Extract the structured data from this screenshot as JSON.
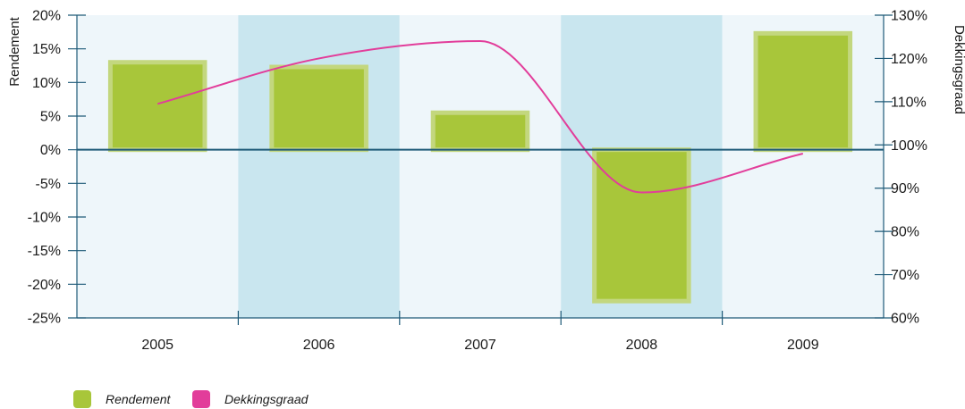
{
  "chart_data": {
    "type": "bar",
    "categories": [
      "2005",
      "2006",
      "2007",
      "2008",
      "2009"
    ],
    "series": [
      {
        "name": "Rendement",
        "type": "bar",
        "axis": "left",
        "values": [
          13,
          12.3,
          5.5,
          -22.5,
          17.3
        ]
      },
      {
        "name": "Dekkingsgraad",
        "type": "line",
        "axis": "right",
        "values": [
          109.5,
          120,
          124,
          89,
          98
        ]
      }
    ],
    "xlabel": "",
    "ylabel": "Rendement",
    "y2label": "Dekkingsgraad",
    "ylim": [
      -25,
      20
    ],
    "y2lim": [
      60,
      130
    ],
    "yticks": [
      "20%",
      "15%",
      "10%",
      "5%",
      "0%",
      "-5%",
      "-10%",
      "-15%",
      "-20%",
      "-25%"
    ],
    "y2ticks": [
      "130%",
      "120%",
      "110%",
      "100%",
      "90%",
      "80%",
      "70%",
      "60%"
    ],
    "legend": {
      "position": "bottom-left",
      "entries": [
        "Rendement",
        "Dekkingsgraad"
      ]
    },
    "grid": false,
    "colors": {
      "bar": "#a8c63a",
      "bar_border": "#c3d77e",
      "line": "#e23d9a",
      "band_light": "#eef6fa",
      "band_dark": "#c9e6ef",
      "axis": "#1e5a78"
    }
  }
}
